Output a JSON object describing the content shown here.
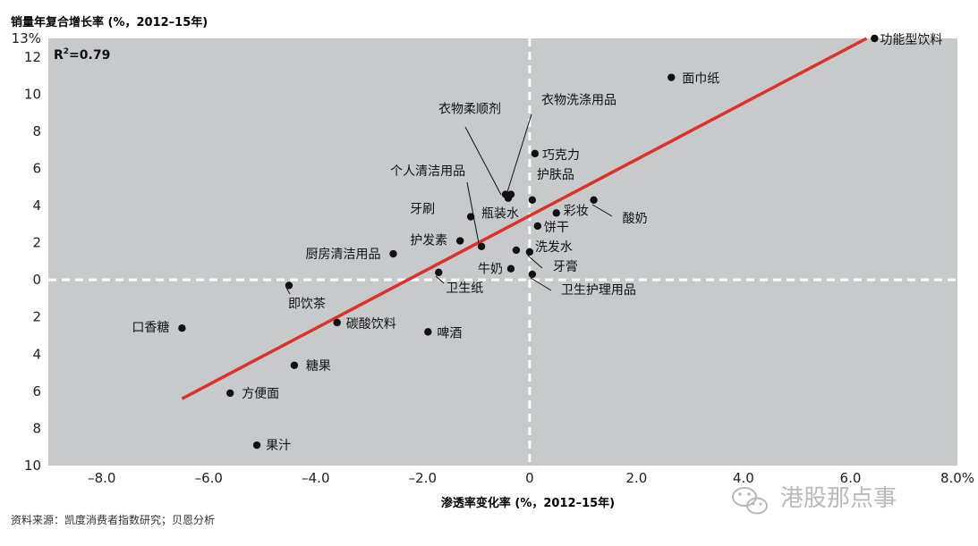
{
  "chart_data": {
    "type": "scatter",
    "title": "",
    "ylabel": "销量年复合增长率 (%，2012–15年)",
    "xlabel": "渗透率变化率 (%，2012–15年)",
    "r_squared": "R²=0.79",
    "r_squared_base": "R",
    "r_squared_exp": "2",
    "r_squared_rest": "=0.79",
    "xlim": [
      -9.0,
      8.0
    ],
    "ylim": [
      -10,
      13
    ],
    "x_ticks": [
      -8,
      -6,
      -4,
      -2,
      0,
      2,
      4,
      6,
      8
    ],
    "x_tick_labels": [
      "–8.0",
      "–6.0",
      "–4.0",
      "–2.0",
      "0",
      "2.0",
      "4.0",
      "6.0",
      "8.0%"
    ],
    "y_ticks": [
      13,
      12,
      10,
      8,
      6,
      4,
      2,
      0,
      -2,
      -4,
      -6,
      -8,
      -10
    ],
    "y_tick_labels": [
      "13%",
      "12",
      "10",
      "8",
      "6",
      "4",
      "2",
      "0",
      "2",
      "4",
      "6",
      "8",
      "10"
    ],
    "background_color": "#c8c9cb",
    "trend_color": "#d9342b",
    "quadrant_line_color": "#ffffff",
    "trendline": {
      "x": [
        -6.5,
        6.3
      ],
      "y": [
        -6.4,
        13.0
      ]
    },
    "points": [
      {
        "name": "功能型饮料",
        "x": 6.45,
        "y": 13.0
      },
      {
        "name": "面巾纸",
        "x": 2.65,
        "y": 10.9
      },
      {
        "name": "衣物柔顺剂",
        "x": -0.45,
        "y": 4.6
      },
      {
        "name": "衣物洗涤用品",
        "x": -0.35,
        "y": 4.6
      },
      {
        "name": "巧克力",
        "x": 0.1,
        "y": 6.8
      },
      {
        "name": "护肤品",
        "x": 0.05,
        "y": 4.3
      },
      {
        "name": "个人清洁用品",
        "x": -0.9,
        "y": 1.8
      },
      {
        "name": "牙刷",
        "x": -1.1,
        "y": 3.4
      },
      {
        "name": "瓶装水",
        "x": -0.4,
        "y": 4.4
      },
      {
        "name": "彩妆",
        "x": 0.5,
        "y": 3.6
      },
      {
        "name": "酸奶",
        "x": 1.2,
        "y": 4.3
      },
      {
        "name": "饼干",
        "x": 0.15,
        "y": 2.9
      },
      {
        "name": "护发素",
        "x": -1.3,
        "y": 2.1
      },
      {
        "name": "厨房清洁用品",
        "x": -2.55,
        "y": 1.4
      },
      {
        "name": "洗发水",
        "x": -0.25,
        "y": 1.6
      },
      {
        "name": "牛奶",
        "x": -0.35,
        "y": 0.6
      },
      {
        "name": "牙膏",
        "x": 0.0,
        "y": 1.5
      },
      {
        "name": "卫生纸",
        "x": -1.7,
        "y": 0.4
      },
      {
        "name": "卫生护理用品",
        "x": 0.05,
        "y": 0.3
      },
      {
        "name": "即饮茶",
        "x": -4.5,
        "y": -0.3
      },
      {
        "name": "口香糖",
        "x": -6.5,
        "y": -2.6
      },
      {
        "name": "碳酸饮料",
        "x": -3.6,
        "y": -2.3
      },
      {
        "name": "啤酒",
        "x": -1.9,
        "y": -2.8
      },
      {
        "name": "糖果",
        "x": -4.4,
        "y": -4.6
      },
      {
        "name": "方便面",
        "x": -5.6,
        "y": -6.1
      },
      {
        "name": "果汁",
        "x": -5.1,
        "y": -8.9
      }
    ]
  },
  "footer": {
    "source": "资料来源：凯度消费者指数研究；贝恩分析"
  },
  "watermark": {
    "text": "港股那点事",
    "icon": "wechat-icon"
  }
}
